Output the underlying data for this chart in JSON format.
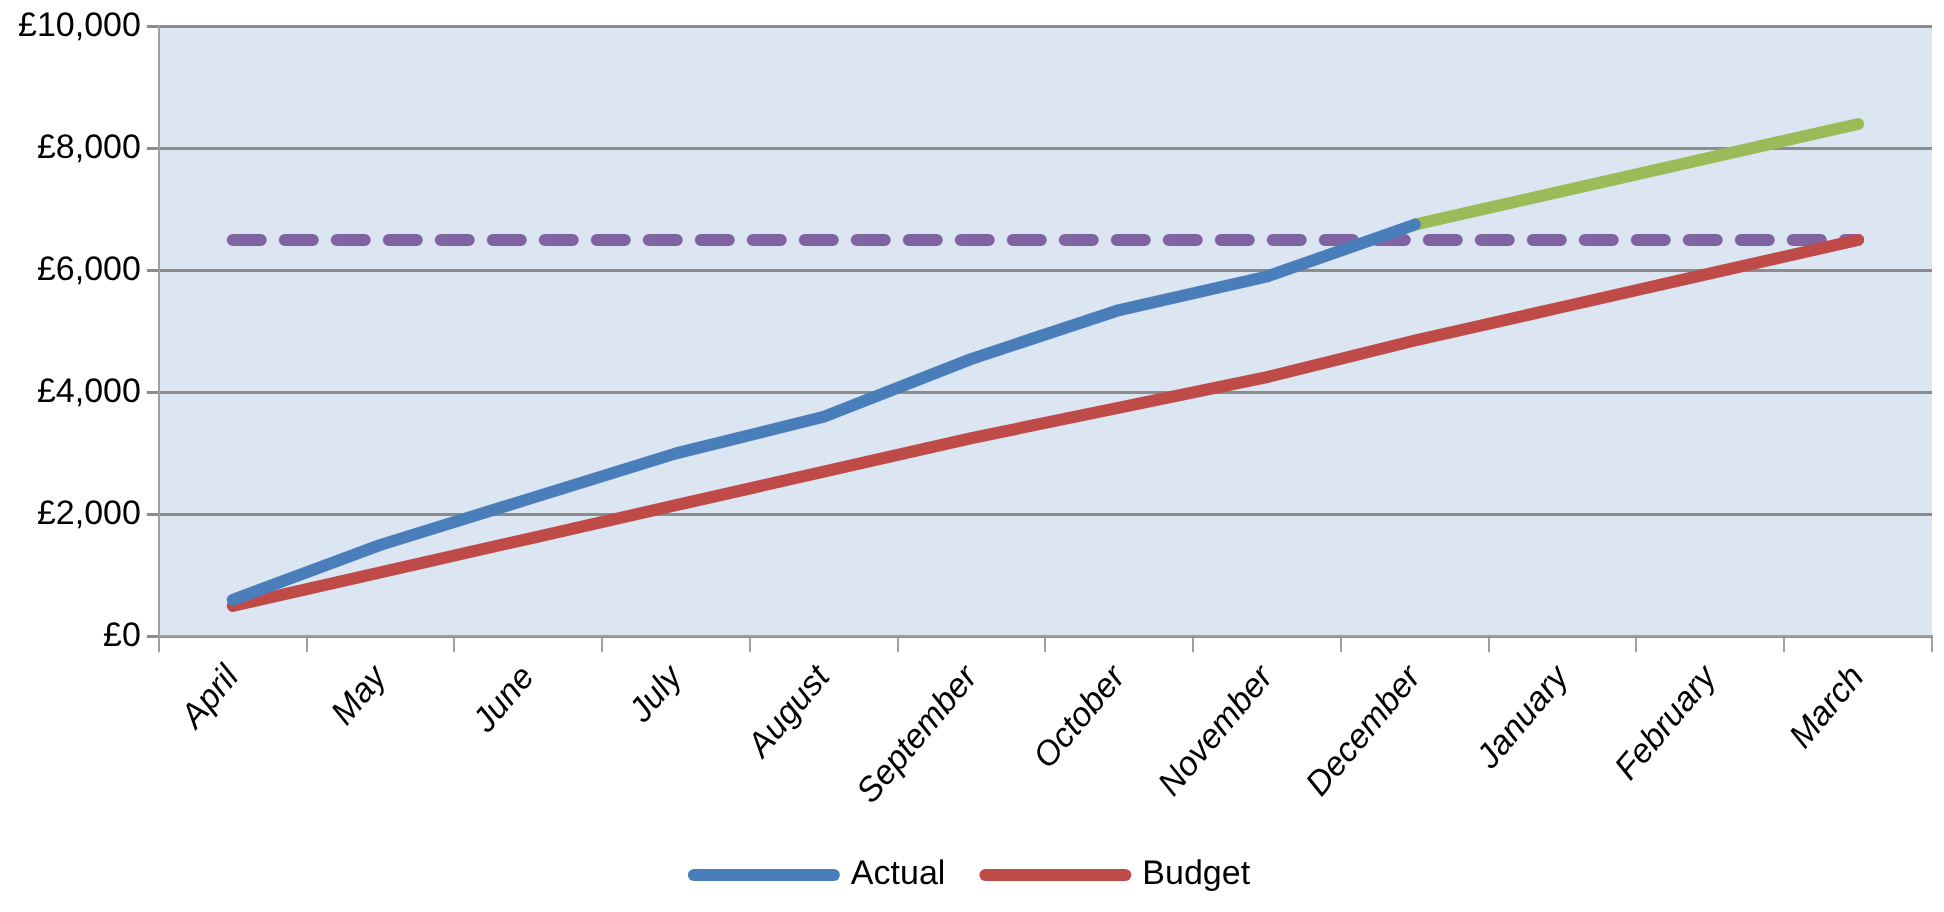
{
  "chart_data": {
    "type": "line",
    "categories": [
      "April",
      "May",
      "June",
      "July",
      "August",
      "September",
      "October",
      "November",
      "December",
      "January",
      "February",
      "March"
    ],
    "series": [
      {
        "name": "Actual",
        "color": "#4a7ebb",
        "values": [
          600,
          1500,
          2250,
          3000,
          3600,
          4550,
          5350,
          5900,
          6750,
          null,
          null,
          null
        ]
      },
      {
        "name": "Budget",
        "color": "#be4b48",
        "values": [
          500,
          1050,
          1600,
          2150,
          2700,
          3250,
          3750,
          4250,
          4850,
          5400,
          5950,
          6500
        ]
      },
      {
        "color": "#9bbb59",
        "values": [
          null,
          null,
          null,
          null,
          null,
          null,
          null,
          null,
          6750,
          7300,
          7850,
          8400
        ]
      },
      {
        "color": "#8064a2",
        "line_style": "dashed",
        "values": [
          6500,
          6500,
          6500,
          6500,
          6500,
          6500,
          6500,
          6500,
          6500,
          6500,
          6500,
          6500
        ]
      }
    ],
    "ylim": [
      0,
      10000
    ],
    "yticks": [
      {
        "value": 0,
        "label": "£0"
      },
      {
        "value": 2000,
        "label": "£2,000"
      },
      {
        "value": 4000,
        "label": "£4,000"
      },
      {
        "value": 6000,
        "label": "£6,000"
      },
      {
        "value": 8000,
        "label": "£8,000"
      },
      {
        "value": 10000,
        "label": "£10,000"
      }
    ],
    "grid": "y",
    "legend": "bottom",
    "marker": "none",
    "line_style": "solid"
  }
}
